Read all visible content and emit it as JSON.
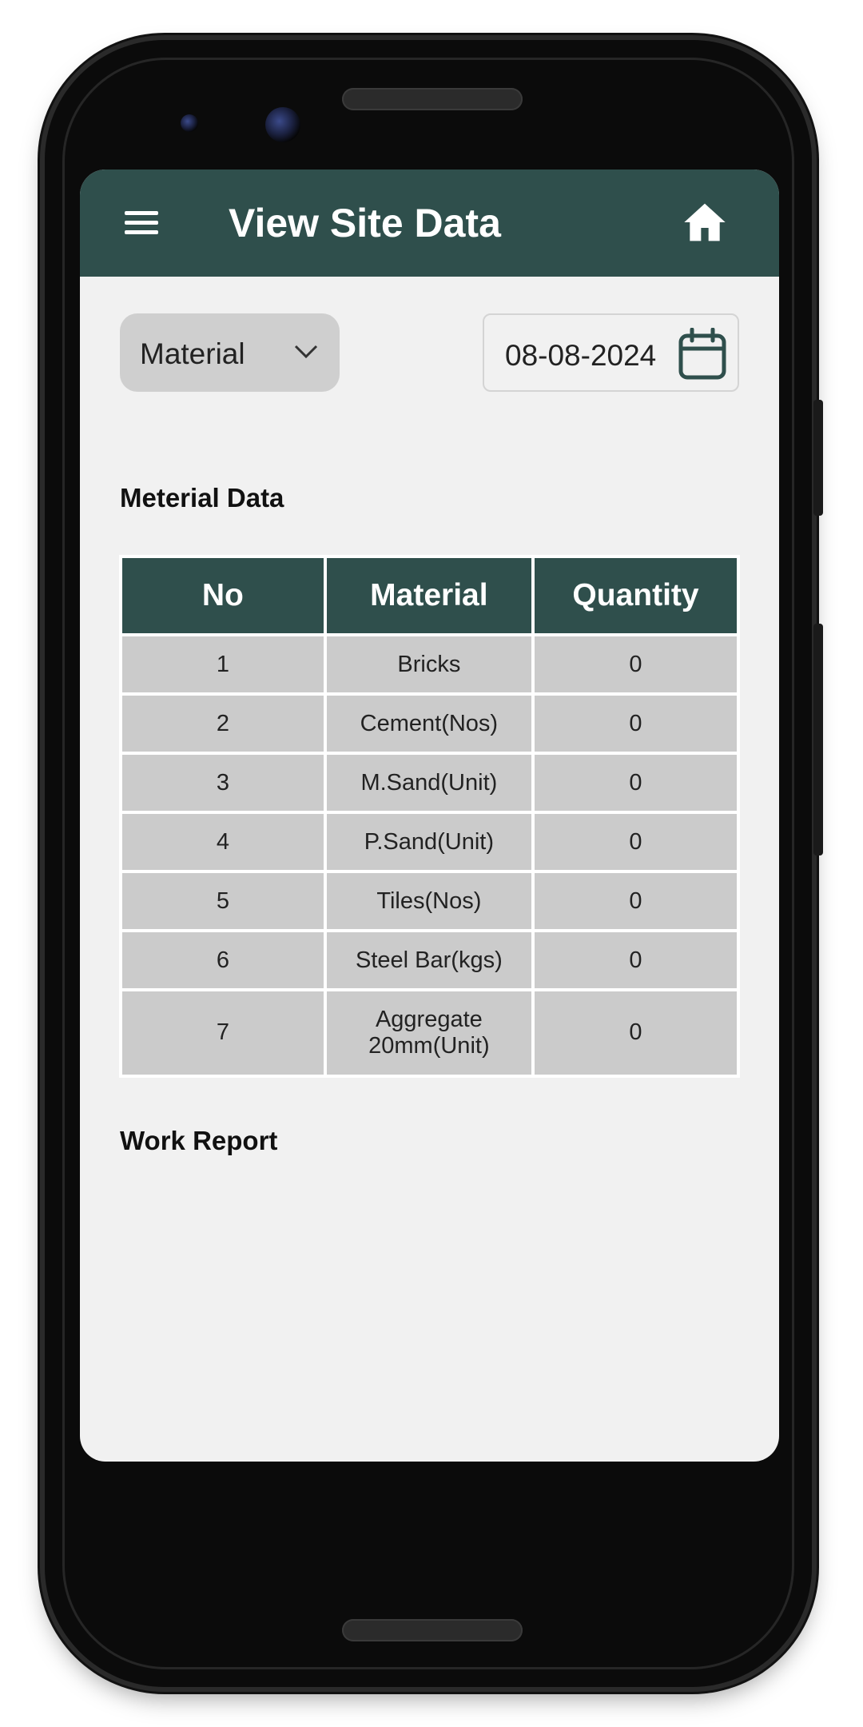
{
  "appbar": {
    "title": "View Site Data",
    "menu_icon": "menu-icon",
    "home_icon": "home-icon",
    "color": "#2f4f4c"
  },
  "filters": {
    "category_value": "Material",
    "date_value": "08-08-2024"
  },
  "material_section": {
    "title": "Meterial Data"
  },
  "table": {
    "headers": [
      "No",
      "Material",
      "Quantity"
    ],
    "rows": [
      [
        "1",
        "Bricks",
        "0"
      ],
      [
        "2",
        "Cement(Nos)",
        "0"
      ],
      [
        "3",
        "M.Sand(Unit)",
        "0"
      ],
      [
        "4",
        "P.Sand(Unit)",
        "0"
      ],
      [
        "5",
        "Tiles(Nos)",
        "0"
      ],
      [
        "6",
        "Steel Bar(kgs)",
        "0"
      ],
      [
        "7",
        "Aggregate 20mm(Unit)",
        "0"
      ]
    ]
  },
  "work_section": {
    "title": "Work Report"
  }
}
